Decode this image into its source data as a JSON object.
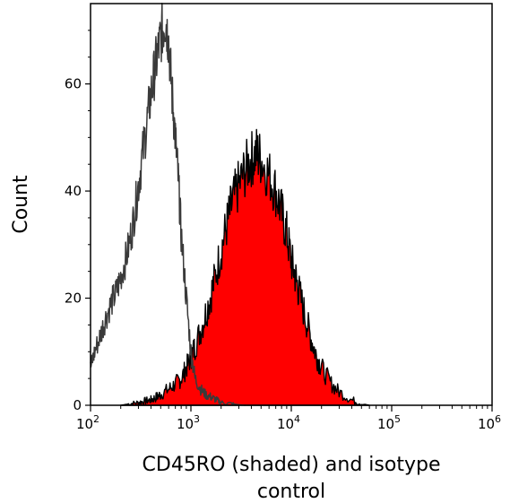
{
  "chart_data": {
    "type": "area",
    "title": "",
    "xlabel": "CD45RO (shaded) and isotype control",
    "xlabel_lines": [
      "CD45RO (shaded) and isotype",
      "control"
    ],
    "ylabel": "Count",
    "x_scale": "log",
    "xlim": [
      100,
      1000000
    ],
    "ylim": [
      0,
      75
    ],
    "grid": false,
    "legend": "none",
    "x_ticks": [
      {
        "value": 100,
        "base": "10",
        "exp": "2"
      },
      {
        "value": 1000,
        "base": "10",
        "exp": "3"
      },
      {
        "value": 10000,
        "base": "10",
        "exp": "4"
      },
      {
        "value": 100000,
        "base": "10",
        "exp": "5"
      },
      {
        "value": 1000000,
        "base": "10",
        "exp": "6"
      }
    ],
    "y_ticks": [
      "0",
      "20",
      "40",
      "60"
    ],
    "y_tick_values": [
      0,
      20,
      40,
      60
    ],
    "series": [
      {
        "style": "outline",
        "color": "#3a3a3a",
        "x": [
          100,
          110,
          125,
          140,
          160,
          180,
          200,
          230,
          260,
          290,
          320,
          360,
          400,
          440,
          480,
          520,
          560,
          600,
          650,
          700,
          750,
          800,
          900,
          1000,
          1100,
          1250,
          1400,
          1600,
          1800,
          2000,
          2500,
          3000,
          3500
        ],
        "y": [
          7,
          10,
          13,
          16,
          19,
          21,
          24,
          28,
          33,
          39,
          45,
          52,
          58,
          63,
          67,
          70,
          72,
          68,
          58,
          50,
          42,
          32,
          20,
          10,
          5,
          3,
          2,
          1.5,
          1,
          0.5,
          0.3,
          0.1,
          0
        ]
      },
      {
        "style": "filled",
        "color": "#ff0000",
        "x": [
          200,
          250,
          300,
          350,
          400,
          450,
          500,
          600,
          700,
          800,
          900,
          1000,
          1100,
          1300,
          1500,
          1700,
          2000,
          2300,
          2600,
          3000,
          3500,
          4000,
          4500,
          5000,
          6000,
          7000,
          8000,
          9000,
          10000,
          11000,
          12000,
          14000,
          16000,
          18000,
          20000,
          25000,
          30000,
          40000,
          50000,
          60000
        ],
        "y": [
          0,
          0.3,
          0.5,
          0.8,
          1,
          1.5,
          2,
          3,
          4,
          5,
          7,
          9,
          11,
          15,
          19,
          23,
          29,
          34,
          38,
          41,
          44,
          46,
          47,
          46,
          43,
          40,
          36,
          32,
          27,
          24,
          21,
          16,
          12,
          9,
          7,
          4,
          2.5,
          1,
          0.3,
          0
        ]
      }
    ]
  }
}
